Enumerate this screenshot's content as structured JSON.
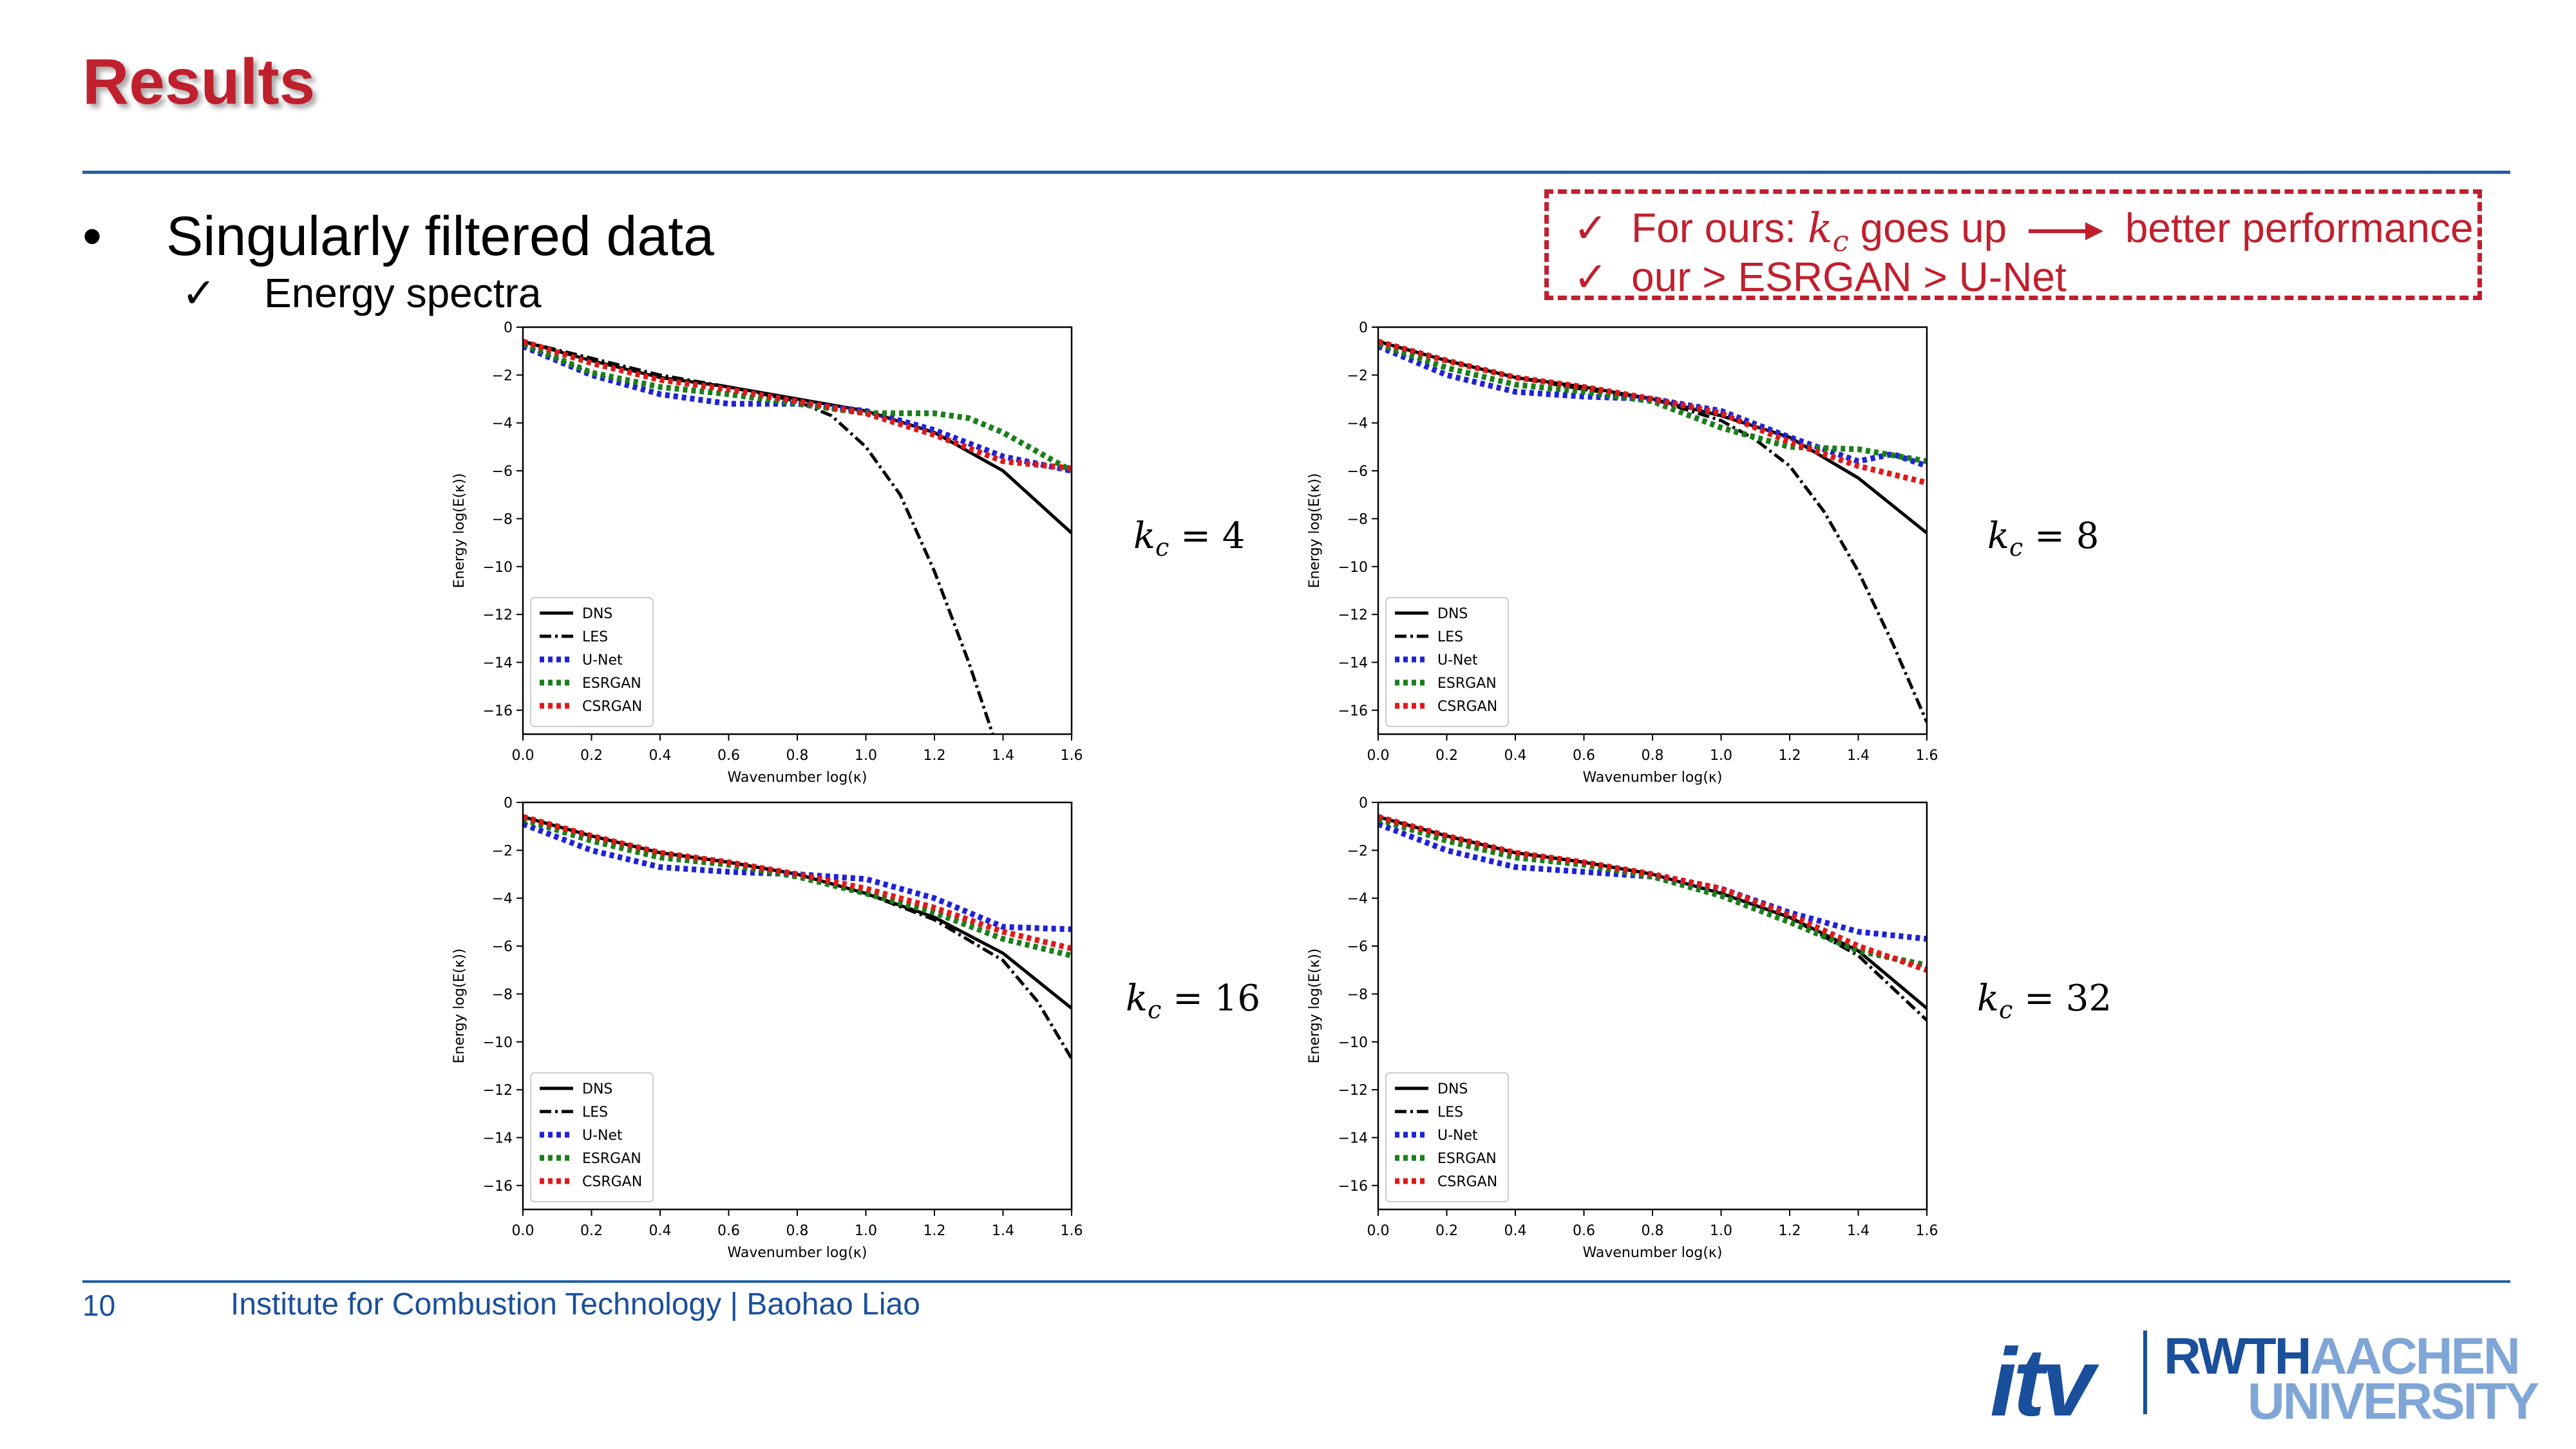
{
  "slide": {
    "title": "Results",
    "bullet": "•",
    "bullet_main": "Singularly filtered data",
    "check": "✓",
    "bullet_sub": "Energy spectra",
    "callout": {
      "line1_a": "For ours:",
      "line1_k": "k",
      "line1_sub": "c",
      "line1_b": "goes up",
      "line1_c": "better performance",
      "line2": "our > ESRGAN > U-Net"
    },
    "panel_labels": [
      {
        "k": "k",
        "sub": "c",
        "eq": " = 4"
      },
      {
        "k": "k",
        "sub": "c",
        "eq": " = 8"
      },
      {
        "k": "k",
        "sub": "c",
        "eq": " = 16"
      },
      {
        "k": "k",
        "sub": "c",
        "eq": " = 32"
      }
    ],
    "footer_page": "10",
    "footer_text": "Institute for Combustion Technology | Baohao Liao",
    "logo": {
      "itv": "itv",
      "rwth": "RWTH",
      "aachen": "AACHEN",
      "university": "UNIVERSITY"
    },
    "colors": {
      "accent": "#c0202e",
      "rule": "#2060a8",
      "footer": "#1a4f9c"
    }
  },
  "chart_data": [
    {
      "type": "line",
      "xlabel": "Wavenumber log(κ)",
      "ylabel": "Energy log(E(κ))",
      "xlim": [
        0,
        1.6
      ],
      "ylim": [
        -17,
        0
      ],
      "xticks": [
        "0.0",
        "0.2",
        "0.4",
        "0.6",
        "0.8",
        "1.0",
        "1.2",
        "1.4",
        "1.6"
      ],
      "yticks": [
        "0",
        "−2",
        "−4",
        "−6",
        "−8",
        "−10",
        "−12",
        "−14",
        "−16"
      ],
      "legend_position": "lower-left",
      "series": [
        {
          "name": "DNS",
          "x": [
            0,
            0.2,
            0.4,
            0.6,
            0.8,
            1.0,
            1.2,
            1.4,
            1.6
          ],
          "y": [
            -0.6,
            -1.4,
            -2.1,
            -2.5,
            -3.0,
            -3.5,
            -4.4,
            -6.0,
            -8.6
          ]
        },
        {
          "name": "LES",
          "x": [
            0,
            0.2,
            0.4,
            0.6,
            0.8,
            0.9,
            1.0,
            1.1,
            1.2,
            1.3,
            1.37
          ],
          "y": [
            -0.6,
            -1.3,
            -2.0,
            -2.5,
            -3.1,
            -3.7,
            -5.0,
            -7.0,
            -10.2,
            -14.0,
            -17.0
          ]
        },
        {
          "name": "U-Net",
          "x": [
            0,
            0.2,
            0.4,
            0.6,
            0.8,
            1.0,
            1.2,
            1.4,
            1.6
          ],
          "y": [
            -0.8,
            -2.0,
            -2.8,
            -3.2,
            -3.2,
            -3.5,
            -4.3,
            -5.4,
            -6.0
          ]
        },
        {
          "name": "ESRGAN",
          "x": [
            0,
            0.2,
            0.4,
            0.6,
            0.8,
            1.0,
            1.2,
            1.3,
            1.4,
            1.5,
            1.6
          ],
          "y": [
            -0.7,
            -1.9,
            -2.5,
            -2.8,
            -3.2,
            -3.6,
            -3.6,
            -3.8,
            -4.4,
            -5.2,
            -6.0
          ]
        },
        {
          "name": "CSRGAN",
          "x": [
            0,
            0.2,
            0.4,
            0.6,
            0.8,
            1.0,
            1.2,
            1.4,
            1.6
          ],
          "y": [
            -0.6,
            -1.5,
            -2.2,
            -2.6,
            -3.1,
            -3.6,
            -4.5,
            -5.6,
            -5.9
          ]
        }
      ]
    },
    {
      "type": "line",
      "xlabel": "Wavenumber log(κ)",
      "ylabel": "Energy log(E(κ))",
      "xlim": [
        0,
        1.6
      ],
      "ylim": [
        -17,
        0
      ],
      "xticks": [
        "0.0",
        "0.2",
        "0.4",
        "0.6",
        "0.8",
        "1.0",
        "1.2",
        "1.4",
        "1.6"
      ],
      "yticks": [
        "0",
        "−2",
        "−4",
        "−6",
        "−8",
        "−10",
        "−12",
        "−14",
        "−16"
      ],
      "legend_position": "lower-left",
      "series": [
        {
          "name": "DNS",
          "x": [
            0,
            0.2,
            0.4,
            0.6,
            0.8,
            1.0,
            1.2,
            1.4,
            1.6
          ],
          "y": [
            -0.6,
            -1.4,
            -2.1,
            -2.5,
            -3.0,
            -3.7,
            -4.6,
            -6.3,
            -8.6
          ]
        },
        {
          "name": "LES",
          "x": [
            0,
            0.2,
            0.4,
            0.6,
            0.8,
            1.0,
            1.1,
            1.2,
            1.3,
            1.4,
            1.5,
            1.6
          ],
          "y": [
            -0.6,
            -1.4,
            -2.1,
            -2.6,
            -3.0,
            -3.9,
            -4.7,
            -5.8,
            -7.7,
            -10.2,
            -13.2,
            -16.5
          ]
        },
        {
          "name": "U-Net",
          "x": [
            0,
            0.2,
            0.4,
            0.6,
            0.8,
            1.0,
            1.2,
            1.4,
            1.5,
            1.6
          ],
          "y": [
            -0.8,
            -2.0,
            -2.7,
            -2.9,
            -3.0,
            -3.5,
            -4.6,
            -5.6,
            -5.3,
            -5.8
          ]
        },
        {
          "name": "ESRGAN",
          "x": [
            0,
            0.2,
            0.4,
            0.6,
            0.8,
            1.0,
            1.2,
            1.4,
            1.6
          ],
          "y": [
            -0.7,
            -1.7,
            -2.4,
            -2.7,
            -3.1,
            -4.2,
            -5.0,
            -5.1,
            -5.6
          ]
        },
        {
          "name": "CSRGAN",
          "x": [
            0,
            0.2,
            0.4,
            0.6,
            0.8,
            1.0,
            1.2,
            1.4,
            1.6
          ],
          "y": [
            -0.6,
            -1.4,
            -2.1,
            -2.5,
            -3.0,
            -3.6,
            -4.8,
            -5.8,
            -6.5
          ]
        }
      ]
    },
    {
      "type": "line",
      "xlabel": "Wavenumber log(κ)",
      "ylabel": "Energy log(E(κ))",
      "xlim": [
        0,
        1.6
      ],
      "ylim": [
        -17,
        0
      ],
      "xticks": [
        "0.0",
        "0.2",
        "0.4",
        "0.6",
        "0.8",
        "1.0",
        "1.2",
        "1.4",
        "1.6"
      ],
      "yticks": [
        "0",
        "−2",
        "−4",
        "−6",
        "−8",
        "−10",
        "−12",
        "−14",
        "−16"
      ],
      "legend_position": "lower-left",
      "series": [
        {
          "name": "DNS",
          "x": [
            0,
            0.2,
            0.4,
            0.6,
            0.8,
            1.0,
            1.2,
            1.4,
            1.6
          ],
          "y": [
            -0.6,
            -1.4,
            -2.1,
            -2.5,
            -3.0,
            -3.8,
            -4.8,
            -6.3,
            -8.6
          ]
        },
        {
          "name": "LES",
          "x": [
            0,
            0.2,
            0.4,
            0.6,
            0.8,
            1.0,
            1.2,
            1.4,
            1.5,
            1.6
          ],
          "y": [
            -0.6,
            -1.4,
            -2.1,
            -2.5,
            -3.0,
            -3.8,
            -4.9,
            -6.6,
            -8.3,
            -10.7
          ]
        },
        {
          "name": "U-Net",
          "x": [
            0,
            0.2,
            0.4,
            0.6,
            0.8,
            1.0,
            1.2,
            1.4,
            1.6
          ],
          "y": [
            -0.9,
            -2.0,
            -2.7,
            -2.9,
            -3.0,
            -3.2,
            -4.0,
            -5.2,
            -5.3
          ]
        },
        {
          "name": "ESRGAN",
          "x": [
            0,
            0.2,
            0.4,
            0.6,
            0.8,
            1.0,
            1.2,
            1.4,
            1.6
          ],
          "y": [
            -0.7,
            -1.6,
            -2.3,
            -2.6,
            -3.1,
            -3.8,
            -4.6,
            -5.7,
            -6.4
          ]
        },
        {
          "name": "CSRGAN",
          "x": [
            0,
            0.2,
            0.4,
            0.6,
            0.8,
            1.0,
            1.2,
            1.4,
            1.6
          ],
          "y": [
            -0.6,
            -1.4,
            -2.1,
            -2.5,
            -3.0,
            -3.6,
            -4.4,
            -5.4,
            -6.1
          ]
        }
      ]
    },
    {
      "type": "line",
      "xlabel": "Wavenumber log(κ)",
      "ylabel": "Energy log(E(κ))",
      "xlim": [
        0,
        1.6
      ],
      "ylim": [
        -17,
        0
      ],
      "xticks": [
        "0.0",
        "0.2",
        "0.4",
        "0.6",
        "0.8",
        "1.0",
        "1.2",
        "1.4",
        "1.6"
      ],
      "yticks": [
        "0",
        "−2",
        "−4",
        "−6",
        "−8",
        "−10",
        "−12",
        "−14",
        "−16"
      ],
      "legend_position": "lower-left",
      "series": [
        {
          "name": "DNS",
          "x": [
            0,
            0.2,
            0.4,
            0.6,
            0.8,
            1.0,
            1.2,
            1.4,
            1.6
          ],
          "y": [
            -0.6,
            -1.4,
            -2.1,
            -2.5,
            -3.0,
            -3.8,
            -4.8,
            -6.2,
            -8.6
          ]
        },
        {
          "name": "LES",
          "x": [
            0,
            0.2,
            0.4,
            0.6,
            0.8,
            1.0,
            1.2,
            1.4,
            1.6
          ],
          "y": [
            -0.6,
            -1.4,
            -2.1,
            -2.5,
            -3.0,
            -3.8,
            -4.8,
            -6.4,
            -9.1
          ]
        },
        {
          "name": "U-Net",
          "x": [
            0,
            0.2,
            0.4,
            0.6,
            0.8,
            1.0,
            1.2,
            1.4,
            1.6
          ],
          "y": [
            -0.9,
            -2.0,
            -2.7,
            -2.9,
            -3.1,
            -3.6,
            -4.6,
            -5.4,
            -5.7
          ]
        },
        {
          "name": "ESRGAN",
          "x": [
            0,
            0.2,
            0.4,
            0.6,
            0.8,
            1.0,
            1.2,
            1.4,
            1.6
          ],
          "y": [
            -0.7,
            -1.6,
            -2.3,
            -2.6,
            -3.1,
            -3.9,
            -5.0,
            -6.2,
            -6.8
          ]
        },
        {
          "name": "CSRGAN",
          "x": [
            0,
            0.2,
            0.4,
            0.6,
            0.8,
            1.0,
            1.2,
            1.4,
            1.6
          ],
          "y": [
            -0.6,
            -1.4,
            -2.1,
            -2.5,
            -3.0,
            -3.6,
            -4.7,
            -6.0,
            -7.0
          ]
        }
      ]
    }
  ]
}
